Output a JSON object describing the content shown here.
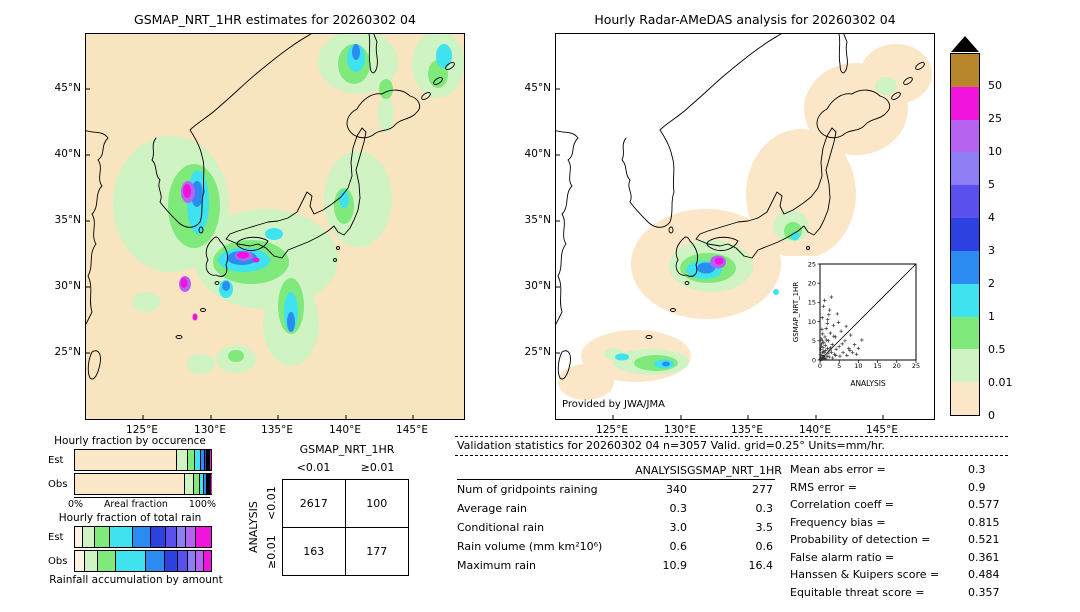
{
  "colorbar": {
    "labels": [
      "50",
      "25",
      "10",
      "5",
      "4",
      "3",
      "2",
      "1",
      "0.5",
      "0.01",
      "0"
    ],
    "colors_top_to_bottom": [
      "#b8862d",
      "#f114dc",
      "#b763f2",
      "#8e7ef5",
      "#5a50ee",
      "#2d41e0",
      "#2a8cf0",
      "#3fe2ef",
      "#7fe97c",
      "#cff3c3",
      "#fbe7c8"
    ],
    "overflow_marker": "black-triangle-up",
    "units": "mm/hr"
  },
  "chart_data": [
    {
      "type": "map",
      "title": "GSMAP_NRT_1HR estimates for 20260302 04",
      "lat_ticks": [
        "45°N",
        "40°N",
        "35°N",
        "30°N",
        "25°N"
      ],
      "lon_ticks": [
        "125°E",
        "130°E",
        "135°E",
        "140°E",
        "145°E"
      ]
    },
    {
      "type": "map",
      "title": "Hourly Radar-AMeDAS analysis for 20260302 04",
      "lat_ticks": [
        "45°N",
        "40°N",
        "35°N",
        "30°N",
        "25°N"
      ],
      "lon_ticks": [
        "125°E",
        "130°E",
        "135°E",
        "140°E",
        "145°E"
      ],
      "credit": "Provided by JWA/JMA"
    },
    {
      "type": "scatter",
      "xlabel": "ANALYSIS",
      "ylabel": "GSMAP_NRT_1HR",
      "xlim": [
        0,
        25
      ],
      "ylim": [
        0,
        25
      ],
      "xticks": [
        0,
        5,
        10,
        15,
        20,
        25
      ],
      "yticks": [
        0,
        5,
        10,
        15,
        20,
        25
      ],
      "identity_line": true,
      "marker": "+",
      "points": [
        [
          0.1,
          0.1
        ],
        [
          0.2,
          0.5
        ],
        [
          0.3,
          0.2
        ],
        [
          0.5,
          1.2
        ],
        [
          0.4,
          0.3
        ],
        [
          0.6,
          2
        ],
        [
          0.7,
          0.5
        ],
        [
          0.8,
          3.2
        ],
        [
          1,
          1
        ],
        [
          1,
          4.5
        ],
        [
          1.2,
          0.4
        ],
        [
          1.3,
          6
        ],
        [
          1.5,
          2.5
        ],
        [
          1.6,
          8.2
        ],
        [
          1.8,
          1
        ],
        [
          2,
          3
        ],
        [
          2,
          10.5
        ],
        [
          2.2,
          5
        ],
        [
          2.4,
          0.8
        ],
        [
          2.5,
          13
        ],
        [
          2.7,
          7
        ],
        [
          3,
          2
        ],
        [
          3,
          16.4
        ],
        [
          3.2,
          4
        ],
        [
          3.5,
          9
        ],
        [
          3.8,
          1.5
        ],
        [
          4,
          6
        ],
        [
          4.2,
          2.8
        ],
        [
          4.5,
          12
        ],
        [
          5,
          3.5
        ],
        [
          5.2,
          1
        ],
        [
          5.5,
          7.5
        ],
        [
          6,
          2
        ],
        [
          6.5,
          5
        ],
        [
          7,
          1.2
        ],
        [
          7.5,
          3
        ],
        [
          8,
          6.5
        ],
        [
          8.5,
          2
        ],
        [
          9,
          4
        ],
        [
          9.5,
          1.5
        ],
        [
          10,
          3
        ],
        [
          10.9,
          5.2
        ],
        [
          0.2,
          2.8
        ],
        [
          0.3,
          5.5
        ],
        [
          0.5,
          8
        ],
        [
          0.6,
          11
        ],
        [
          0.9,
          14
        ],
        [
          1.1,
          2
        ],
        [
          1.4,
          3.8
        ],
        [
          0.1,
          1.5
        ],
        [
          0.2,
          0.1
        ],
        [
          0.4,
          4.2
        ],
        [
          0.7,
          6.8
        ],
        [
          2.1,
          1.8
        ],
        [
          2.8,
          3.2
        ],
        [
          3.3,
          0.5
        ],
        [
          1.7,
          5.2
        ],
        [
          0.8,
          0.8
        ],
        [
          1.9,
          9.5
        ],
        [
          2.3,
          11.8
        ],
        [
          0.5,
          0.2
        ],
        [
          3.6,
          6.2
        ],
        [
          4.8,
          9.8
        ],
        [
          1.2,
          15.5
        ],
        [
          0.3,
          3.6
        ],
        [
          5.8,
          4.2
        ],
        [
          6.8,
          8.8
        ],
        [
          0.9,
          2.2
        ],
        [
          1.5,
          0.3
        ],
        [
          2.6,
          2.6
        ],
        [
          4.1,
          1.2
        ],
        [
          7.8,
          2.5
        ],
        [
          0.6,
          5
        ]
      ]
    },
    {
      "type": "bar",
      "subtype": "stacked_horizontal_percent",
      "title": "Hourly fraction by occurence",
      "categories": [
        "Est",
        "Obs"
      ],
      "axis": {
        "left": "0%",
        "center": "Areal fraction",
        "right": "100%"
      },
      "est_segments": [
        {
          "color": "#fbe7c8",
          "pct": 75
        },
        {
          "color": "#cff3c3",
          "pct": 8
        },
        {
          "color": "#7fe97c",
          "pct": 5
        },
        {
          "color": "#3fe2ef",
          "pct": 4.5
        },
        {
          "color": "#2a8cf0",
          "pct": 3
        },
        {
          "color": "#2d41e0",
          "pct": 1.5
        },
        {
          "color": "#5a50ee",
          "pct": 1
        },
        {
          "color": "#8e7ef5",
          "pct": 0.8
        },
        {
          "color": "#b763f2",
          "pct": 0.6
        },
        {
          "color": "#f114dc",
          "pct": 0.6
        }
      ],
      "obs_segments": [
        {
          "color": "#fbe7c8",
          "pct": 82
        },
        {
          "color": "#cff3c3",
          "pct": 6.5
        },
        {
          "color": "#7fe97c",
          "pct": 4
        },
        {
          "color": "#3fe2ef",
          "pct": 3.5
        },
        {
          "color": "#2a8cf0",
          "pct": 1.8
        },
        {
          "color": "#2d41e0",
          "pct": 0.8
        },
        {
          "color": "#5a50ee",
          "pct": 0.5
        },
        {
          "color": "#8e7ef5",
          "pct": 0.4
        },
        {
          "color": "#b763f2",
          "pct": 0.3
        },
        {
          "color": "#f114dc",
          "pct": 0.2
        }
      ]
    },
    {
      "type": "bar",
      "subtype": "stacked_horizontal_percent",
      "title": "Hourly fraction of total rain",
      "caption": "Rainfall accumulation by amount",
      "categories": [
        "Est",
        "Obs"
      ],
      "est_segments": [
        {
          "color": "#fdf3e3",
          "pct": 6
        },
        {
          "color": "#cff3c3",
          "pct": 9
        },
        {
          "color": "#7fe97c",
          "pct": 11
        },
        {
          "color": "#3fe2ef",
          "pct": 17
        },
        {
          "color": "#2a8cf0",
          "pct": 13
        },
        {
          "color": "#2d41e0",
          "pct": 11
        },
        {
          "color": "#5a50ee",
          "pct": 8
        },
        {
          "color": "#8e7ef5",
          "pct": 7
        },
        {
          "color": "#b763f2",
          "pct": 7
        },
        {
          "color": "#f114dc",
          "pct": 11
        }
      ],
      "obs_segments": [
        {
          "color": "#fdf3e3",
          "pct": 7
        },
        {
          "color": "#cff3c3",
          "pct": 10
        },
        {
          "color": "#7fe97c",
          "pct": 13
        },
        {
          "color": "#3fe2ef",
          "pct": 22
        },
        {
          "color": "#2a8cf0",
          "pct": 14
        },
        {
          "color": "#2d41e0",
          "pct": 10
        },
        {
          "color": "#5a50ee",
          "pct": 7
        },
        {
          "color": "#8e7ef5",
          "pct": 6
        },
        {
          "color": "#b763f2",
          "pct": 6
        },
        {
          "color": "#f114dc",
          "pct": 5
        }
      ]
    },
    {
      "type": "table",
      "name": "contingency_table",
      "col_group": "GSMAP_NRT_1HR",
      "row_group": "ANALYSIS",
      "col_labels": [
        "<0.01",
        "≥0.01"
      ],
      "row_labels": [
        "<0.01",
        "≥0.01"
      ],
      "values": [
        [
          "2617",
          "100"
        ],
        [
          "163",
          "177"
        ]
      ]
    },
    {
      "type": "table",
      "name": "validation_statistics",
      "title": "Validation statistics for 20260302 04  n=3057 Valid. grid=0.25° Units=mm/hr.",
      "columns": [
        "ANALYSIS",
        "GSMAP_NRT_1HR"
      ],
      "rows": [
        {
          "label": "Num of gridpoints raining",
          "analysis": "340",
          "gsmap": "277"
        },
        {
          "label": "Average rain",
          "analysis": "0.3",
          "gsmap": "0.3"
        },
        {
          "label": "Conditional rain",
          "analysis": "3.0",
          "gsmap": "3.5"
        },
        {
          "label": "Rain volume (mm km²10⁶)",
          "analysis": "0.6",
          "gsmap": "0.6"
        },
        {
          "label": "Maximum rain",
          "analysis": "10.9",
          "gsmap": "16.4"
        }
      ],
      "scores": [
        {
          "label": "Mean abs error =",
          "value": "0.3"
        },
        {
          "label": "RMS error =",
          "value": "0.9"
        },
        {
          "label": "Correlation coeff =",
          "value": "0.577"
        },
        {
          "label": "Frequency bias =",
          "value": "0.815"
        },
        {
          "label": "Probability of detection =",
          "value": "0.521"
        },
        {
          "label": "False alarm ratio =",
          "value": "0.361"
        },
        {
          "label": "Hanssen & Kuipers score =",
          "value": "0.484"
        },
        {
          "label": "Equitable threat score =",
          "value": "0.357"
        }
      ]
    }
  ]
}
